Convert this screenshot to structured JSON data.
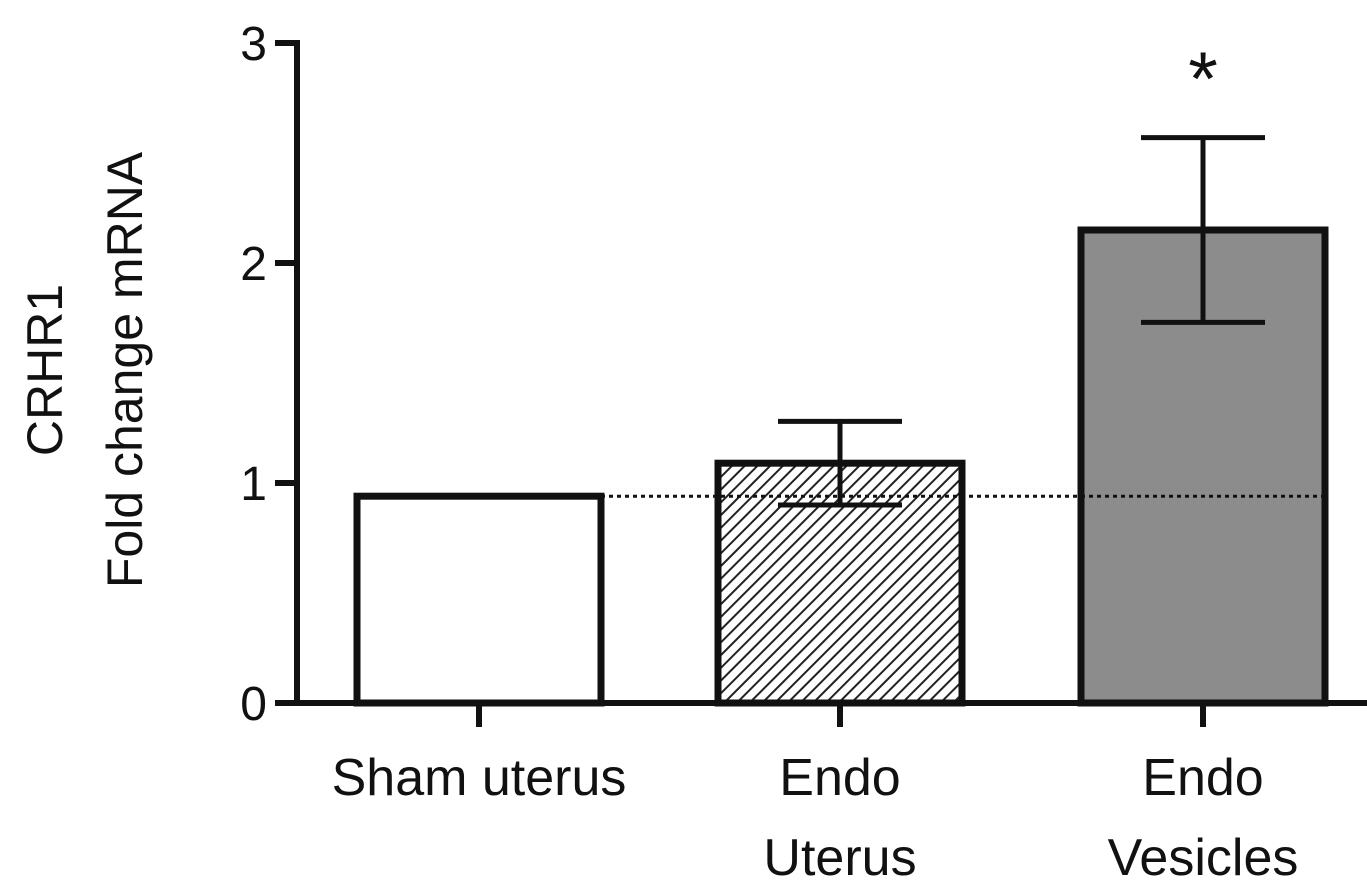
{
  "chart_data": {
    "type": "bar",
    "ylabel": [
      "CRHR1",
      "Fold change mRNA"
    ],
    "categories": [
      "Sham uterus",
      "Endo\nUterus",
      "Endo\nVesicles"
    ],
    "values": [
      0.94,
      1.09,
      2.15
    ],
    "errors": [
      null,
      0.19,
      0.42
    ],
    "fills": [
      "#ffffff",
      "hatch",
      "#8c8c8c"
    ],
    "reference_line": "dotted",
    "annotations": [
      {
        "category": 2,
        "text": "*"
      }
    ],
    "ylim": [
      0,
      3
    ],
    "yticks": [
      0,
      1,
      2,
      3
    ],
    "grid": false
  }
}
